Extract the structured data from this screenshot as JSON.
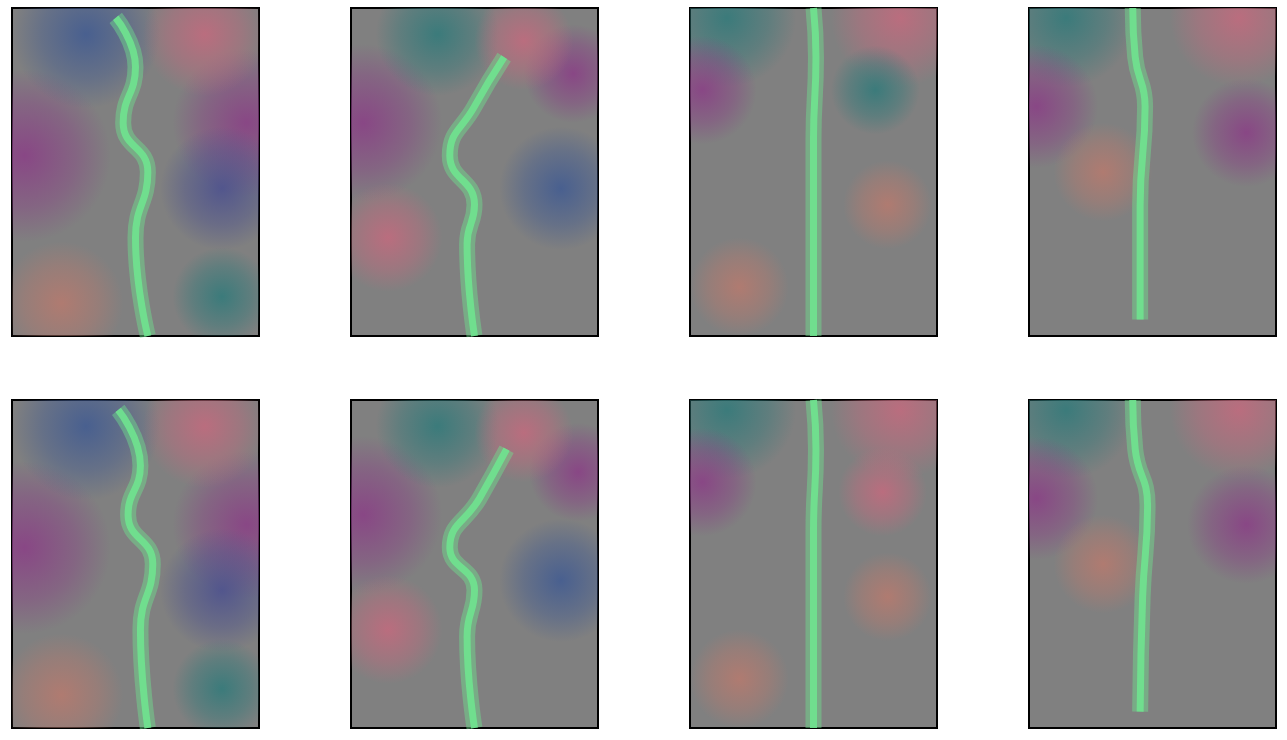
{
  "chart_data": {
    "type": "flow_field",
    "xlim": [
      0,
      1
    ],
    "ylim": [
      0,
      1
    ],
    "tick_labels": false,
    "grid": false,
    "background": "#808080",
    "panels": [
      [
        {
          "blobs": [
            {
              "x": 0.05,
              "y": 0.55,
              "r": 0.35,
              "color": "#8a3d86"
            },
            {
              "x": 0.95,
              "y": 0.65,
              "r": 0.3,
              "color": "#8a3d86"
            },
            {
              "x": 0.3,
              "y": 0.92,
              "r": 0.3,
              "color": "#3f5a92"
            },
            {
              "x": 0.78,
              "y": 0.92,
              "r": 0.25,
              "color": "#c46a7e"
            },
            {
              "x": 0.85,
              "y": 0.45,
              "r": 0.25,
              "color": "#4a4f8f"
            },
            {
              "x": 0.2,
              "y": 0.1,
              "r": 0.25,
              "color": "#b87a6e"
            },
            {
              "x": 0.85,
              "y": 0.12,
              "r": 0.2,
              "color": "#2f7a7a"
            }
          ],
          "plume": {
            "color": "#6fe38f",
            "points": [
              [
                0.55,
                0.0
              ],
              [
                0.5,
                0.3
              ],
              [
                0.55,
                0.5
              ],
              [
                0.45,
                0.65
              ],
              [
                0.5,
                0.82
              ],
              [
                0.42,
                0.97
              ]
            ]
          }
        },
        {
          "blobs": [
            {
              "x": 0.05,
              "y": 0.65,
              "r": 0.32,
              "color": "#8a3d86"
            },
            {
              "x": 0.15,
              "y": 0.3,
              "r": 0.22,
              "color": "#c46a7e"
            },
            {
              "x": 0.85,
              "y": 0.45,
              "r": 0.25,
              "color": "#3f5a92"
            },
            {
              "x": 0.9,
              "y": 0.8,
              "r": 0.2,
              "color": "#8a3d86"
            },
            {
              "x": 0.35,
              "y": 0.92,
              "r": 0.25,
              "color": "#2f7a7a"
            },
            {
              "x": 0.7,
              "y": 0.9,
              "r": 0.2,
              "color": "#c46a7e"
            }
          ],
          "plume": {
            "color": "#6fe38f",
            "points": [
              [
                0.5,
                0.0
              ],
              [
                0.47,
                0.28
              ],
              [
                0.5,
                0.4
              ],
              [
                0.4,
                0.55
              ],
              [
                0.5,
                0.7
              ],
              [
                0.62,
                0.85
              ]
            ]
          }
        },
        {
          "blobs": [
            {
              "x": 0.15,
              "y": 0.97,
              "r": 0.28,
              "color": "#2f7a7a"
            },
            {
              "x": 0.85,
              "y": 0.97,
              "r": 0.28,
              "color": "#c46a7e"
            },
            {
              "x": 0.05,
              "y": 0.75,
              "r": 0.22,
              "color": "#8a3d86"
            },
            {
              "x": 0.2,
              "y": 0.15,
              "r": 0.2,
              "color": "#b87a6e"
            },
            {
              "x": 0.8,
              "y": 0.4,
              "r": 0.18,
              "color": "#b87a6e"
            },
            {
              "x": 0.75,
              "y": 0.75,
              "r": 0.18,
              "color": "#2f7a7a"
            }
          ],
          "plume": {
            "color": "#6fe38f",
            "points": [
              [
                0.5,
                0.0
              ],
              [
                0.5,
                0.3
              ],
              [
                0.5,
                0.6
              ],
              [
                0.51,
                0.85
              ],
              [
                0.5,
                1.0
              ]
            ]
          }
        },
        {
          "blobs": [
            {
              "x": 0.15,
              "y": 0.97,
              "r": 0.28,
              "color": "#2f7a7a"
            },
            {
              "x": 0.85,
              "y": 0.97,
              "r": 0.28,
              "color": "#c46a7e"
            },
            {
              "x": 0.03,
              "y": 0.7,
              "r": 0.25,
              "color": "#8a3d86"
            },
            {
              "x": 0.88,
              "y": 0.62,
              "r": 0.22,
              "color": "#8a3d86"
            },
            {
              "x": 0.3,
              "y": 0.5,
              "r": 0.2,
              "color": "#b87a6e"
            }
          ],
          "plume": {
            "color": "#6fe38f",
            "points": [
              [
                0.45,
                0.05
              ],
              [
                0.45,
                0.4
              ],
              [
                0.47,
                0.7
              ],
              [
                0.43,
                0.85
              ],
              [
                0.42,
                1.0
              ]
            ]
          }
        }
      ],
      [
        {
          "blobs": [
            {
              "x": 0.05,
              "y": 0.55,
              "r": 0.35,
              "color": "#8a3d86"
            },
            {
              "x": 0.95,
              "y": 0.62,
              "r": 0.3,
              "color": "#8a3d86"
            },
            {
              "x": 0.3,
              "y": 0.92,
              "r": 0.3,
              "color": "#3f5a92"
            },
            {
              "x": 0.78,
              "y": 0.92,
              "r": 0.25,
              "color": "#c46a7e"
            },
            {
              "x": 0.85,
              "y": 0.42,
              "r": 0.25,
              "color": "#4a4f8f"
            },
            {
              "x": 0.2,
              "y": 0.1,
              "r": 0.25,
              "color": "#b87a6e"
            },
            {
              "x": 0.85,
              "y": 0.12,
              "r": 0.2,
              "color": "#2f7a7a"
            }
          ],
          "plume": {
            "color": "#6fe38f",
            "points": [
              [
                0.55,
                0.0
              ],
              [
                0.52,
                0.3
              ],
              [
                0.57,
                0.5
              ],
              [
                0.47,
                0.65
              ],
              [
                0.52,
                0.8
              ],
              [
                0.43,
                0.97
              ]
            ]
          }
        },
        {
          "blobs": [
            {
              "x": 0.05,
              "y": 0.65,
              "r": 0.32,
              "color": "#8a3d86"
            },
            {
              "x": 0.15,
              "y": 0.3,
              "r": 0.22,
              "color": "#c46a7e"
            },
            {
              "x": 0.85,
              "y": 0.45,
              "r": 0.25,
              "color": "#3f5a92"
            },
            {
              "x": 0.92,
              "y": 0.78,
              "r": 0.2,
              "color": "#8a3d86"
            },
            {
              "x": 0.35,
              "y": 0.92,
              "r": 0.25,
              "color": "#2f7a7a"
            },
            {
              "x": 0.7,
              "y": 0.9,
              "r": 0.2,
              "color": "#c46a7e"
            }
          ],
          "plume": {
            "color": "#6fe38f",
            "points": [
              [
                0.5,
                0.0
              ],
              [
                0.47,
                0.28
              ],
              [
                0.5,
                0.42
              ],
              [
                0.4,
                0.55
              ],
              [
                0.52,
                0.7
              ],
              [
                0.63,
                0.85
              ]
            ]
          }
        },
        {
          "blobs": [
            {
              "x": 0.15,
              "y": 0.97,
              "r": 0.28,
              "color": "#2f7a7a"
            },
            {
              "x": 0.85,
              "y": 0.97,
              "r": 0.28,
              "color": "#c46a7e"
            },
            {
              "x": 0.05,
              "y": 0.75,
              "r": 0.22,
              "color": "#8a3d86"
            },
            {
              "x": 0.2,
              "y": 0.15,
              "r": 0.2,
              "color": "#b87a6e"
            },
            {
              "x": 0.8,
              "y": 0.4,
              "r": 0.18,
              "color": "#b87a6e"
            },
            {
              "x": 0.78,
              "y": 0.72,
              "r": 0.18,
              "color": "#c46a7e"
            }
          ],
          "plume": {
            "color": "#6fe38f",
            "points": [
              [
                0.5,
                0.0
              ],
              [
                0.5,
                0.3
              ],
              [
                0.5,
                0.6
              ],
              [
                0.51,
                0.85
              ],
              [
                0.5,
                1.0
              ]
            ]
          }
        },
        {
          "blobs": [
            {
              "x": 0.15,
              "y": 0.97,
              "r": 0.28,
              "color": "#2f7a7a"
            },
            {
              "x": 0.85,
              "y": 0.97,
              "r": 0.28,
              "color": "#c46a7e"
            },
            {
              "x": 0.03,
              "y": 0.7,
              "r": 0.25,
              "color": "#8a3d86"
            },
            {
              "x": 0.88,
              "y": 0.62,
              "r": 0.24,
              "color": "#8a3d86"
            },
            {
              "x": 0.3,
              "y": 0.5,
              "r": 0.2,
              "color": "#b87a6e"
            }
          ],
          "plume": {
            "color": "#6fe38f",
            "points": [
              [
                0.45,
                0.05
              ],
              [
                0.46,
                0.4
              ],
              [
                0.48,
                0.68
              ],
              [
                0.43,
                0.85
              ],
              [
                0.42,
                1.0
              ]
            ]
          }
        }
      ]
    ]
  }
}
